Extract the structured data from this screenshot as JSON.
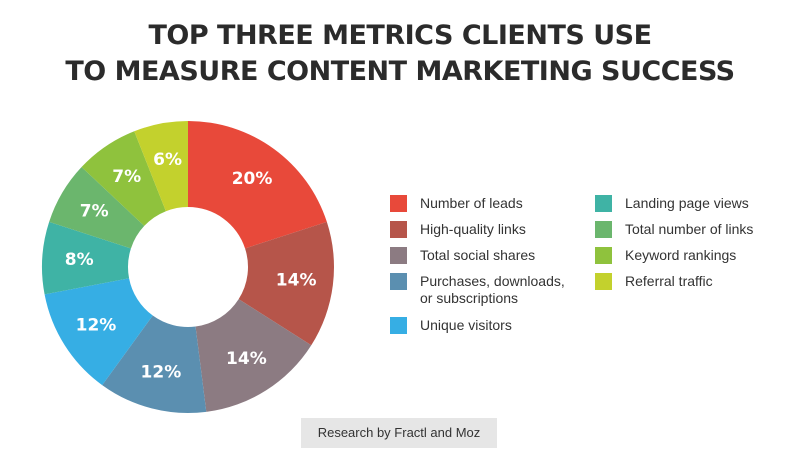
{
  "header": {
    "title_line1": "TOP THREE METRICS CLIENTS USE",
    "title_line2": "TO MEASURE CONTENT MARKETING SUCCESS"
  },
  "chart_data": {
    "type": "pie",
    "donut": true,
    "title": "TOP THREE METRICS CLIENTS USE TO MEASURE CONTENT MARKETING SUCCESS",
    "legend_placement": "right",
    "slices": [
      {
        "label": "Number of leads",
        "value": 20,
        "display": "20%",
        "color": "#e8493a"
      },
      {
        "label": "High-quality links",
        "value": 14,
        "display": "14%",
        "color": "#b6554a"
      },
      {
        "label": "Total social shares",
        "value": 14,
        "display": "14%",
        "color": "#8c7b82"
      },
      {
        "label": "Purchases, downloads, or subscriptions",
        "value": 12,
        "display": "12%",
        "color": "#5b8fb0"
      },
      {
        "label": "Unique visitors",
        "value": 12,
        "display": "12%",
        "color": "#36aee4"
      },
      {
        "label": "Landing page views",
        "value": 8,
        "display": "8%",
        "color": "#3fb3a5"
      },
      {
        "label": "Total number of links",
        "value": 7,
        "display": "7%",
        "color": "#6bb66d"
      },
      {
        "label": "Keyword rankings",
        "value": 7,
        "display": "7%",
        "color": "#8fc23d"
      },
      {
        "label": "Referral traffic",
        "value": 6,
        "display": "6%",
        "color": "#c3d12d"
      }
    ]
  },
  "footer": {
    "source": "Research by Fractl and Moz"
  }
}
